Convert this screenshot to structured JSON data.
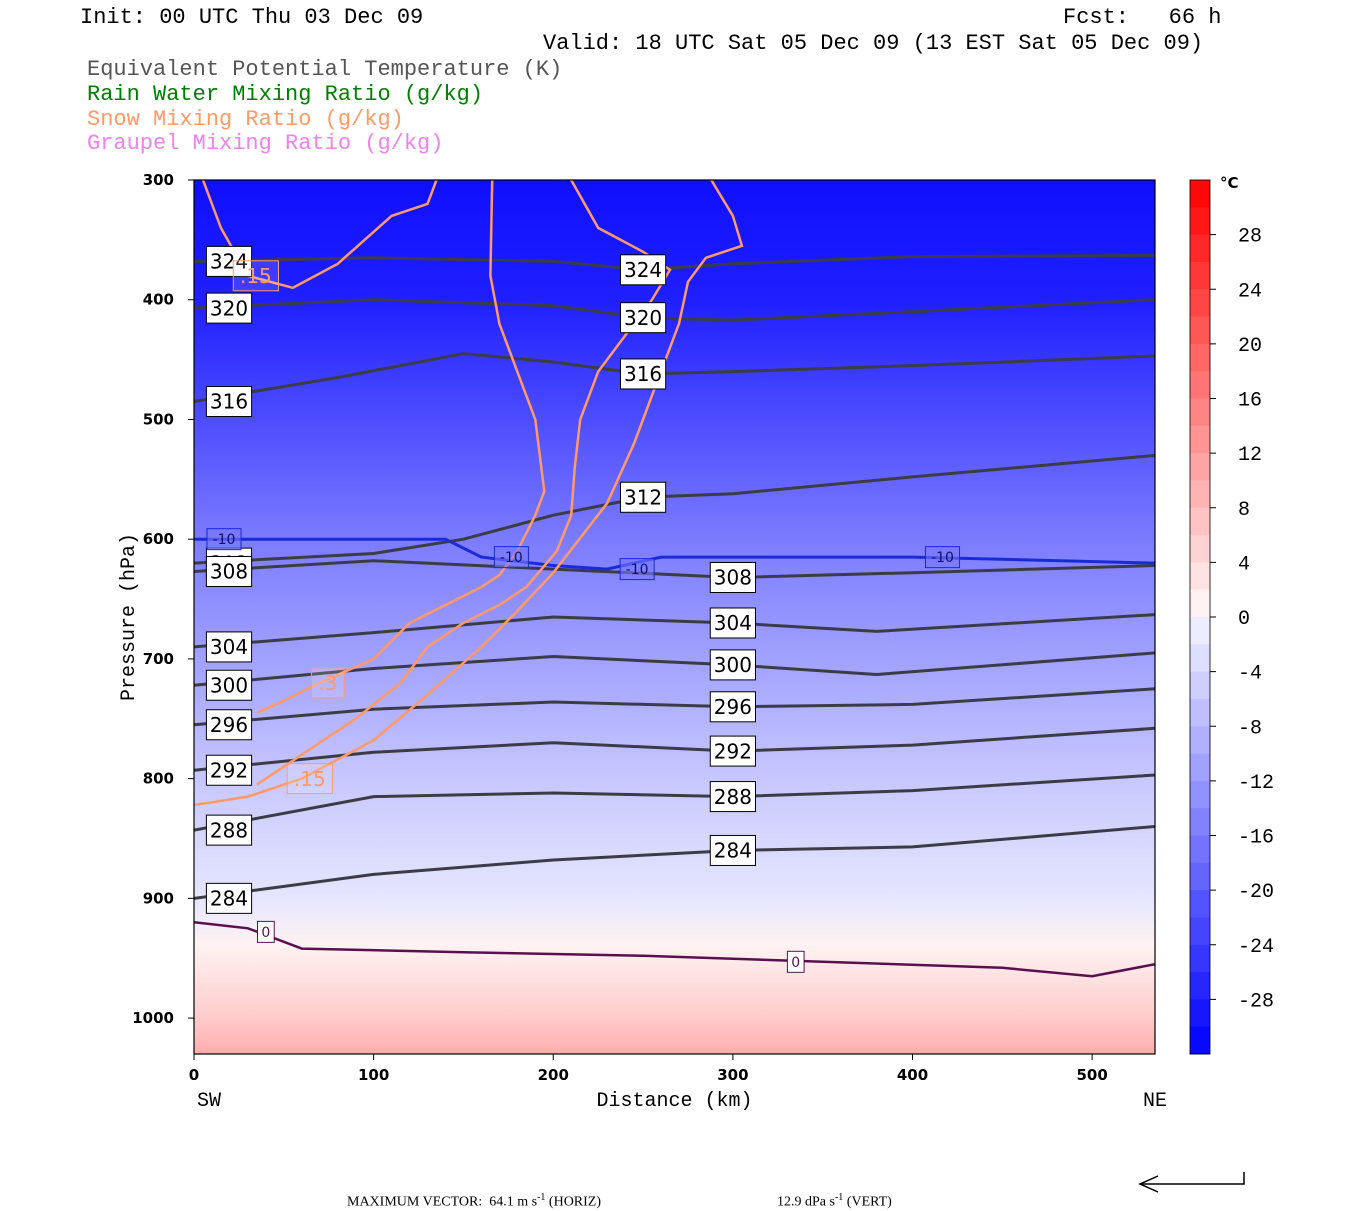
{
  "header": {
    "init": "Init: 00 UTC Thu 03 Dec 09",
    "fcst": "Fcst:   66 h",
    "valid": "Valid: 18 UTC Sat 05 Dec 09 (13 EST Sat 05 Dec 09)"
  },
  "legend": [
    {
      "text": "Equivalent Potential Temperature (K)",
      "color": "#555555"
    },
    {
      "text": "Rain Water Mixing Ratio (g/kg)",
      "color": "#008000"
    },
    {
      "text": "Snow Mixing Ratio (g/kg)",
      "color": "#ff9966"
    },
    {
      "text": "Graupel Mixing Ratio (g/kg)",
      "color": "#ee82ee"
    }
  ],
  "chart_data": {
    "type": "cross-section",
    "xlabel": "Distance (km)",
    "ylabel": "Pressure (hPa)",
    "xlim": [
      0,
      535
    ],
    "ylim": [
      1030,
      300
    ],
    "x_ticks": [
      "0",
      "100",
      "200",
      "300",
      "400",
      "500"
    ],
    "y_ticks": [
      "300",
      "400",
      "500",
      "600",
      "700",
      "800",
      "900",
      "1000"
    ],
    "x_end_labels": {
      "left": "SW",
      "right": "NE"
    },
    "temperature_shading": [
      {
        "p": 300,
        "t": -30
      },
      {
        "p": 400,
        "t": -28
      },
      {
        "p": 500,
        "t": -22
      },
      {
        "p": 600,
        "t": -16
      },
      {
        "p": 700,
        "t": -11
      },
      {
        "p": 800,
        "t": -6
      },
      {
        "p": 900,
        "t": -2
      },
      {
        "p": 940,
        "t": 1
      },
      {
        "p": 1000,
        "t": 6
      },
      {
        "p": 1030,
        "t": 10
      }
    ],
    "theta_e_contours": [
      {
        "label": "324",
        "points": [
          [
            0,
            368
          ],
          [
            100,
            365
          ],
          [
            200,
            368
          ],
          [
            250,
            375
          ],
          [
            300,
            370
          ],
          [
            400,
            364
          ],
          [
            535,
            363
          ]
        ]
      },
      {
        "label": "320",
        "points": [
          [
            0,
            407
          ],
          [
            100,
            400
          ],
          [
            200,
            405
          ],
          [
            250,
            415
          ],
          [
            300,
            417
          ],
          [
            400,
            410
          ],
          [
            535,
            400
          ]
        ]
      },
      {
        "label": "316",
        "points": [
          [
            0,
            485
          ],
          [
            80,
            465
          ],
          [
            150,
            445
          ],
          [
            200,
            452
          ],
          [
            250,
            462
          ],
          [
            300,
            460
          ],
          [
            400,
            455
          ],
          [
            535,
            447
          ]
        ]
      },
      {
        "label": "312",
        "points": [
          [
            0,
            620
          ],
          [
            100,
            612
          ],
          [
            150,
            600
          ],
          [
            200,
            580
          ],
          [
            250,
            565
          ],
          [
            300,
            562
          ],
          [
            400,
            548
          ],
          [
            535,
            530
          ]
        ]
      },
      {
        "label": "308",
        "points": [
          [
            0,
            627
          ],
          [
            100,
            618
          ],
          [
            200,
            625
          ],
          [
            300,
            632
          ],
          [
            400,
            628
          ],
          [
            535,
            622
          ]
        ]
      },
      {
        "label": "304",
        "points": [
          [
            0,
            690
          ],
          [
            100,
            678
          ],
          [
            200,
            665
          ],
          [
            300,
            670
          ],
          [
            380,
            677
          ],
          [
            535,
            663
          ]
        ]
      },
      {
        "label": "300",
        "points": [
          [
            0,
            722
          ],
          [
            100,
            708
          ],
          [
            200,
            698
          ],
          [
            300,
            705
          ],
          [
            380,
            713
          ],
          [
            535,
            695
          ]
        ]
      },
      {
        "label": "296",
        "points": [
          [
            0,
            755
          ],
          [
            100,
            742
          ],
          [
            200,
            736
          ],
          [
            300,
            740
          ],
          [
            400,
            738
          ],
          [
            535,
            725
          ]
        ]
      },
      {
        "label": "292",
        "points": [
          [
            0,
            793
          ],
          [
            100,
            778
          ],
          [
            200,
            770
          ],
          [
            300,
            777
          ],
          [
            400,
            772
          ],
          [
            535,
            758
          ]
        ]
      },
      {
        "label": "288",
        "points": [
          [
            0,
            843
          ],
          [
            100,
            815
          ],
          [
            200,
            812
          ],
          [
            300,
            815
          ],
          [
            400,
            810
          ],
          [
            535,
            797
          ]
        ]
      },
      {
        "label": "284",
        "points": [
          [
            0,
            900
          ],
          [
            100,
            880
          ],
          [
            200,
            868
          ],
          [
            300,
            860
          ],
          [
            400,
            857
          ],
          [
            535,
            840
          ]
        ]
      }
    ],
    "freezing_level": {
      "label": "0",
      "points": [
        [
          0,
          920
        ],
        [
          30,
          925
        ],
        [
          60,
          942
        ],
        [
          150,
          945
        ],
        [
          250,
          948
        ],
        [
          350,
          953
        ],
        [
          450,
          958
        ],
        [
          500,
          965
        ],
        [
          535,
          955
        ]
      ]
    },
    "minus10_isotherm": {
      "label": "-10",
      "points": [
        [
          0,
          600
        ],
        [
          140,
          600
        ],
        [
          160,
          615
        ],
        [
          200,
          622
        ],
        [
          230,
          625
        ],
        [
          260,
          615
        ],
        [
          400,
          615
        ],
        [
          535,
          620
        ]
      ]
    },
    "snow_contours": [
      {
        "label": ".15",
        "points": [
          [
            0,
            822
          ],
          [
            30,
            815
          ],
          [
            60,
            800
          ],
          [
            100,
            768
          ],
          [
            130,
            730
          ],
          [
            160,
            690
          ],
          [
            180,
            660
          ],
          [
            200,
            628
          ],
          [
            230,
            570
          ],
          [
            245,
            520
          ],
          [
            255,
            480
          ],
          [
            270,
            420
          ],
          [
            275,
            385
          ],
          [
            285,
            365
          ],
          [
            305,
            355
          ],
          [
            300,
            330
          ],
          [
            290,
            305
          ],
          [
            288,
            300
          ]
        ]
      },
      {
        "label": ".3",
        "points": [
          [
            35,
            745
          ],
          [
            50,
            735
          ],
          [
            70,
            720
          ],
          [
            100,
            700
          ],
          [
            120,
            670
          ],
          [
            140,
            655
          ],
          [
            160,
            640
          ],
          [
            170,
            630
          ],
          [
            180,
            610
          ],
          [
            190,
            580
          ],
          [
            195,
            560
          ],
          [
            190,
            500
          ],
          [
            180,
            460
          ],
          [
            170,
            420
          ],
          [
            165,
            380
          ],
          [
            166,
            300
          ]
        ]
      },
      {
        "label": ".15",
        "points": [
          [
            5,
            300
          ],
          [
            15,
            340
          ],
          [
            30,
            380
          ],
          [
            55,
            390
          ],
          [
            80,
            370
          ],
          [
            110,
            330
          ],
          [
            130,
            320
          ],
          [
            135,
            300
          ]
        ]
      },
      {
        "label": "",
        "points": [
          [
            210,
            300
          ],
          [
            225,
            340
          ],
          [
            250,
            360
          ],
          [
            265,
            375
          ],
          [
            255,
            400
          ],
          [
            240,
            430
          ],
          [
            225,
            460
          ],
          [
            215,
            500
          ],
          [
            212,
            540
          ],
          [
            210,
            580
          ],
          [
            202,
            610
          ],
          [
            185,
            640
          ],
          [
            170,
            655
          ],
          [
            150,
            670
          ],
          [
            130,
            690
          ],
          [
            115,
            720
          ],
          [
            90,
            750
          ],
          [
            60,
            780
          ],
          [
            35,
            805
          ]
        ]
      }
    ],
    "colorbar": {
      "unit": "°C",
      "range": [
        -32,
        32
      ],
      "step": 2,
      "tick_labels": [
        "28",
        "24",
        "20",
        "16",
        "12",
        "8",
        "4",
        "0",
        "-4",
        "-8",
        "-12",
        "-16",
        "-20",
        "-24",
        "-28"
      ]
    },
    "footer": {
      "max_vector": "MAXIMUM VECTOR:",
      "horiz_value": "64.1",
      "horiz_unit": "m s",
      "horiz_tag": "(HORIZ)",
      "vert_value": "12.9",
      "vert_unit": "dPa s",
      "vert_tag": "(VERT)",
      "exponent": "-1"
    }
  }
}
